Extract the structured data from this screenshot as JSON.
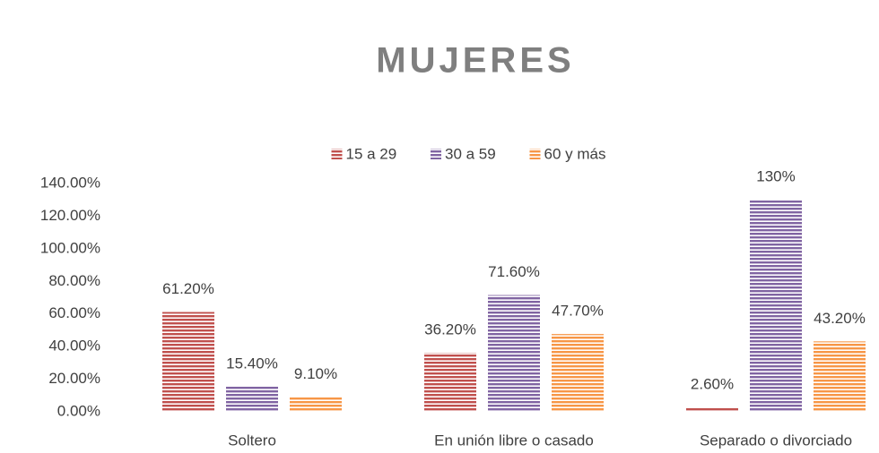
{
  "chart_data": {
    "type": "bar",
    "title": "MUJERES",
    "categories": [
      "Soltero",
      "En unión libre o casado",
      "Separado o divorciado"
    ],
    "series": [
      {
        "name": "15 a 29",
        "color": "#c0504d",
        "values": [
          61.2,
          36.2,
          2.6
        ],
        "value_labels": [
          "61.20%",
          "36.20%",
          "2.60%"
        ]
      },
      {
        "name": "30 a 59",
        "color": "#8064a2",
        "values": [
          15.4,
          71.6,
          130
        ],
        "value_labels": [
          "15.40%",
          "71.60%",
          "130%"
        ]
      },
      {
        "name": "60 y más",
        "color": "#f79646",
        "values": [
          9.1,
          47.7,
          43.2
        ],
        "value_labels": [
          "9.10%",
          "47.70%",
          "43.20%"
        ]
      }
    ],
    "ylim": [
      0,
      140
    ],
    "yticks": [
      {
        "value": 0,
        "label": "0.00%"
      },
      {
        "value": 20,
        "label": "20.00%"
      },
      {
        "value": 40,
        "label": "40.00%"
      },
      {
        "value": 60,
        "label": "60.00%"
      },
      {
        "value": 80,
        "label": "80.00%"
      },
      {
        "value": 100,
        "label": "100.00%"
      },
      {
        "value": 120,
        "label": "120.00%"
      },
      {
        "value": 140,
        "label": "140.00%"
      }
    ],
    "grid": false,
    "legend": "top"
  }
}
